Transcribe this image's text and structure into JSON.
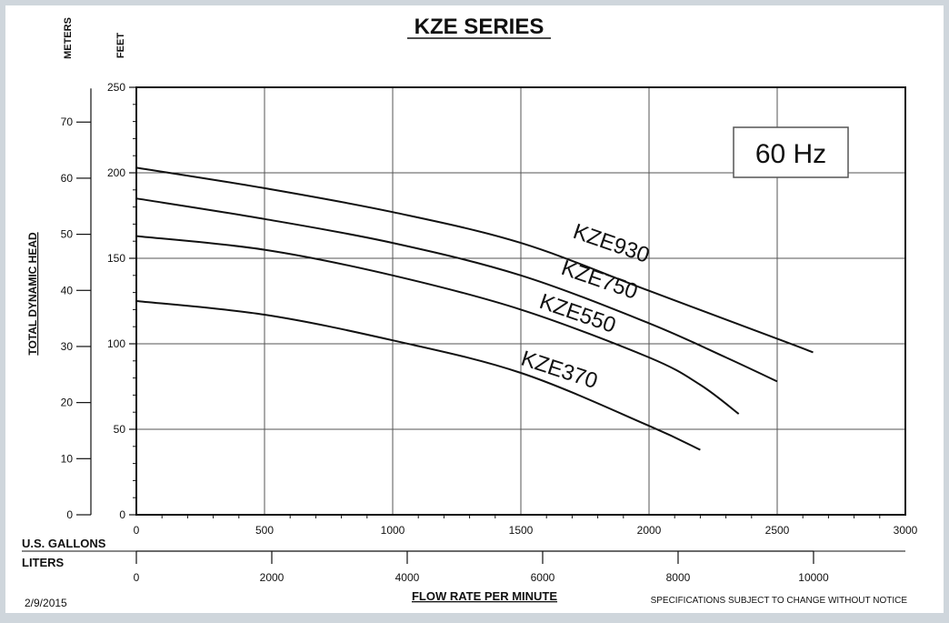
{
  "colors": {
    "background": "#ffffff",
    "frame": "#cfd6dc",
    "ink": "#111111"
  },
  "chart_data": {
    "type": "line",
    "title": "KZE SERIES",
    "frequency_box": "60 Hz",
    "left_axis_title": "TOTAL DYNAMIC HEAD",
    "meters_label": "METERS",
    "feet_label": "FEET",
    "gallons_label": "U.S. GALLONS",
    "liters_label": "LITERS",
    "xlabel": "FLOW RATE PER MINUTE",
    "date": "2/9/2015",
    "disclaimer": "SPECIFICATIONS SUBJECT TO CHANGE WITHOUT NOTICE",
    "xlim": [
      0,
      3000
    ],
    "ylim": [
      0,
      250
    ],
    "x_ticks": [
      "0",
      "500",
      "1000",
      "1500",
      "2000",
      "2500",
      "3000"
    ],
    "y_ticks_feet": [
      "0",
      "50",
      "100",
      "150",
      "200",
      "250"
    ],
    "y_ticks_meters": [
      "0",
      "10",
      "20",
      "30",
      "40",
      "50",
      "60",
      "70"
    ],
    "liter_ticks": [
      "0",
      "2000",
      "4000",
      "6000",
      "8000",
      "10000"
    ],
    "grid": true,
    "series": [
      {
        "name": "KZE930",
        "x": [
          0,
          500,
          1000,
          1500,
          2000,
          2500,
          2640
        ],
        "y": [
          203,
          191,
          177,
          159,
          131,
          103,
          95
        ]
      },
      {
        "name": "KZE750",
        "x": [
          0,
          500,
          1000,
          1500,
          2000,
          2300,
          2500
        ],
        "y": [
          185,
          173,
          159,
          140,
          112,
          92,
          78
        ]
      },
      {
        "name": "KZE550",
        "x": [
          0,
          500,
          1000,
          1500,
          2000,
          2200,
          2350
        ],
        "y": [
          163,
          155,
          140,
          120,
          92,
          76,
          59
        ]
      },
      {
        "name": "KZE370",
        "x": [
          0,
          500,
          1000,
          1500,
          2000,
          2200
        ],
        "y": [
          125,
          117,
          102,
          83,
          52,
          38
        ]
      }
    ]
  }
}
